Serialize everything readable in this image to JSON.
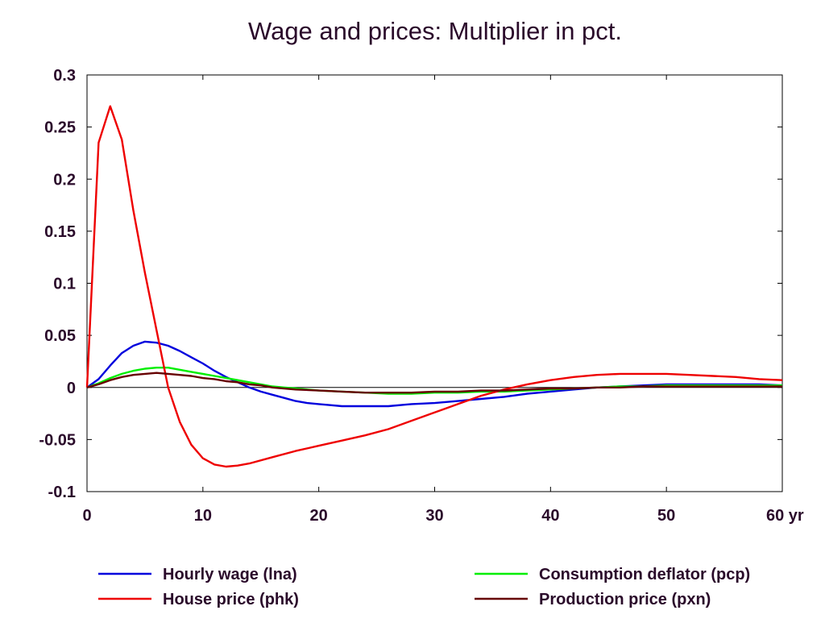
{
  "chart_data": {
    "type": "line",
    "title": "Wage and prices: Multiplier in pct.",
    "xlabel": "",
    "ylabel": "",
    "x_unit_label": "yr",
    "xlim": [
      0,
      60
    ],
    "ylim": [
      -0.1,
      0.3
    ],
    "x_ticks": [
      0,
      10,
      20,
      30,
      40,
      50,
      60
    ],
    "x_tick_labels": [
      "0",
      "10",
      "20",
      "30",
      "40",
      "50",
      "60"
    ],
    "y_ticks": [
      0.3,
      0.25,
      0.2,
      0.15,
      0.1,
      0.05,
      0,
      -0.05,
      -0.1
    ],
    "y_tick_labels": [
      "0.3",
      "0.25",
      "0.2",
      "0.15",
      "0.1",
      "0.05",
      "0",
      "-0.05",
      "-0.1"
    ],
    "grid": false,
    "zero_line": true,
    "legend_position": "bottom",
    "series": [
      {
        "name": "Hourly wage (lna)",
        "color": "#0000dd",
        "points": [
          [
            0,
            0
          ],
          [
            1,
            0.008
          ],
          [
            2,
            0.021
          ],
          [
            3,
            0.033
          ],
          [
            4,
            0.04
          ],
          [
            5,
            0.044
          ],
          [
            6,
            0.043
          ],
          [
            7,
            0.04
          ],
          [
            8,
            0.035
          ],
          [
            9,
            0.029
          ],
          [
            10,
            0.023
          ],
          [
            11,
            0.016
          ],
          [
            12,
            0.01
          ],
          [
            13,
            0.005
          ],
          [
            14,
            0.0
          ],
          [
            15,
            -0.004
          ],
          [
            16,
            -0.007
          ],
          [
            17,
            -0.01
          ],
          [
            18,
            -0.013
          ],
          [
            19,
            -0.015
          ],
          [
            20,
            -0.016
          ],
          [
            21,
            -0.017
          ],
          [
            22,
            -0.018
          ],
          [
            24,
            -0.018
          ],
          [
            26,
            -0.018
          ],
          [
            28,
            -0.016
          ],
          [
            30,
            -0.015
          ],
          [
            32,
            -0.013
          ],
          [
            34,
            -0.011
          ],
          [
            36,
            -0.009
          ],
          [
            38,
            -0.006
          ],
          [
            40,
            -0.004
          ],
          [
            42,
            -0.002
          ],
          [
            44,
            0.0
          ],
          [
            46,
            0.001
          ],
          [
            48,
            0.002
          ],
          [
            50,
            0.003
          ],
          [
            52,
            0.003
          ],
          [
            54,
            0.003
          ],
          [
            56,
            0.003
          ],
          [
            58,
            0.003
          ],
          [
            60,
            0.002
          ]
        ]
      },
      {
        "name": "Consumption deflator (pcp)",
        "color": "#00ee00",
        "points": [
          [
            0,
            0
          ],
          [
            1,
            0.004
          ],
          [
            2,
            0.009
          ],
          [
            3,
            0.013
          ],
          [
            4,
            0.016
          ],
          [
            5,
            0.018
          ],
          [
            6,
            0.019
          ],
          [
            7,
            0.019
          ],
          [
            8,
            0.017
          ],
          [
            9,
            0.015
          ],
          [
            10,
            0.013
          ],
          [
            11,
            0.011
          ],
          [
            12,
            0.009
          ],
          [
            13,
            0.007
          ],
          [
            14,
            0.005
          ],
          [
            15,
            0.003
          ],
          [
            16,
            0.001
          ],
          [
            17,
            0.0
          ],
          [
            18,
            -0.001
          ],
          [
            20,
            -0.003
          ],
          [
            22,
            -0.004
          ],
          [
            24,
            -0.005
          ],
          [
            26,
            -0.006
          ],
          [
            28,
            -0.006
          ],
          [
            30,
            -0.005
          ],
          [
            32,
            -0.005
          ],
          [
            34,
            -0.004
          ],
          [
            36,
            -0.004
          ],
          [
            38,
            -0.003
          ],
          [
            40,
            -0.002
          ],
          [
            42,
            -0.001
          ],
          [
            44,
            0.0
          ],
          [
            46,
            0.001
          ],
          [
            48,
            0.001
          ],
          [
            50,
            0.002
          ],
          [
            52,
            0.002
          ],
          [
            54,
            0.002
          ],
          [
            56,
            0.002
          ],
          [
            58,
            0.002
          ],
          [
            60,
            0.002
          ]
        ]
      },
      {
        "name": "House price (phk)",
        "color": "#ee0000",
        "points": [
          [
            0,
            0
          ],
          [
            1,
            0.235
          ],
          [
            2,
            0.27
          ],
          [
            3,
            0.238
          ],
          [
            4,
            0.17
          ],
          [
            5,
            0.11
          ],
          [
            6,
            0.055
          ],
          [
            7,
            0.0
          ],
          [
            8,
            -0.033
          ],
          [
            9,
            -0.055
          ],
          [
            10,
            -0.068
          ],
          [
            11,
            -0.074
          ],
          [
            12,
            -0.076
          ],
          [
            13,
            -0.075
          ],
          [
            14,
            -0.073
          ],
          [
            16,
            -0.067
          ],
          [
            18,
            -0.061
          ],
          [
            20,
            -0.056
          ],
          [
            22,
            -0.051
          ],
          [
            24,
            -0.046
          ],
          [
            26,
            -0.04
          ],
          [
            28,
            -0.032
          ],
          [
            30,
            -0.024
          ],
          [
            32,
            -0.016
          ],
          [
            34,
            -0.008
          ],
          [
            36,
            -0.002
          ],
          [
            38,
            0.003
          ],
          [
            40,
            0.007
          ],
          [
            42,
            0.01
          ],
          [
            44,
            0.012
          ],
          [
            46,
            0.013
          ],
          [
            48,
            0.013
          ],
          [
            50,
            0.013
          ],
          [
            52,
            0.012
          ],
          [
            54,
            0.011
          ],
          [
            56,
            0.01
          ],
          [
            58,
            0.008
          ],
          [
            60,
            0.007
          ]
        ]
      },
      {
        "name": "Production price (pxn)",
        "color": "#660000",
        "points": [
          [
            0,
            0
          ],
          [
            1,
            0.003
          ],
          [
            2,
            0.007
          ],
          [
            3,
            0.01
          ],
          [
            4,
            0.012
          ],
          [
            5,
            0.013
          ],
          [
            6,
            0.014
          ],
          [
            7,
            0.013
          ],
          [
            8,
            0.012
          ],
          [
            9,
            0.011
          ],
          [
            10,
            0.009
          ],
          [
            11,
            0.008
          ],
          [
            12,
            0.006
          ],
          [
            13,
            0.005
          ],
          [
            14,
            0.003
          ],
          [
            15,
            0.002
          ],
          [
            16,
            0.0
          ],
          [
            18,
            -0.002
          ],
          [
            20,
            -0.003
          ],
          [
            22,
            -0.004
          ],
          [
            24,
            -0.005
          ],
          [
            26,
            -0.005
          ],
          [
            28,
            -0.005
          ],
          [
            30,
            -0.004
          ],
          [
            32,
            -0.004
          ],
          [
            34,
            -0.003
          ],
          [
            36,
            -0.003
          ],
          [
            38,
            -0.002
          ],
          [
            40,
            -0.001
          ],
          [
            42,
            -0.001
          ],
          [
            44,
            0.0
          ],
          [
            46,
            0.0
          ],
          [
            48,
            0.001
          ],
          [
            50,
            0.001
          ],
          [
            52,
            0.001
          ],
          [
            54,
            0.001
          ],
          [
            56,
            0.001
          ],
          [
            58,
            0.001
          ],
          [
            60,
            0.001
          ]
        ]
      }
    ],
    "legend": [
      {
        "label": "Hourly wage (lna)",
        "color": "#0000dd"
      },
      {
        "label": "Consumption deflator (pcp)",
        "color": "#00ee00"
      },
      {
        "label": "House price (phk)",
        "color": "#ee0000"
      },
      {
        "label": "Production price (pxn)",
        "color": "#660000"
      }
    ]
  }
}
